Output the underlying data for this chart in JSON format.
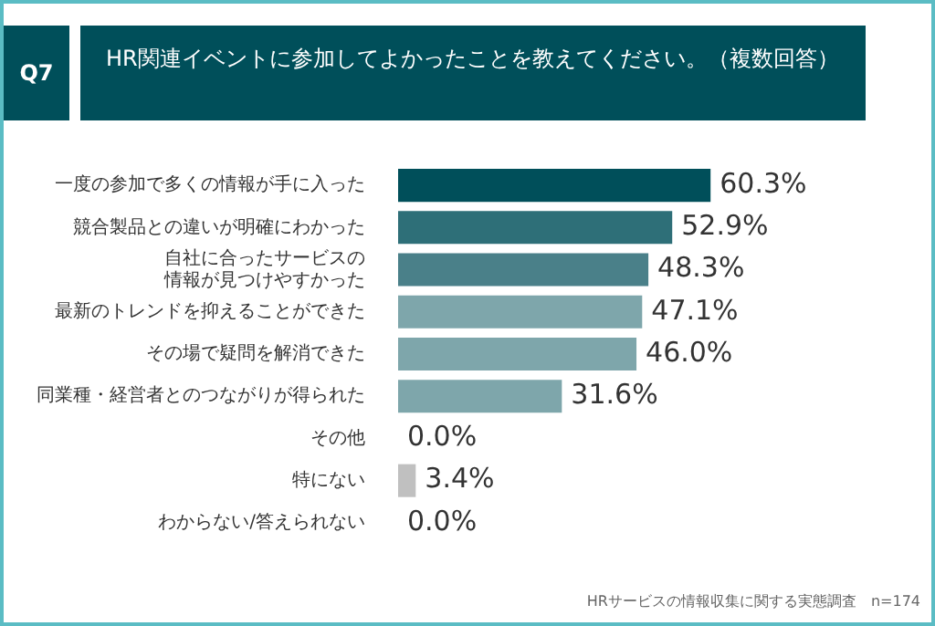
{
  "chart_data": {
    "type": "bar",
    "orientation": "horizontal",
    "title": "HR関連イベントに参加してよかったことを教えてください。（複数回答）",
    "categories": [
      "一度の参加で多くの情報が手に入った",
      "競合製品との違いが明確にわかった",
      "自社に合ったサービスの情報が見つけやすかった",
      "最新のトレンドを抑えることができた",
      "その場で疑問を解消できた",
      "同業種・経営者とのつながりが得られた",
      "その他",
      "特にない",
      "わからない/答えられない"
    ],
    "values": [
      60.3,
      52.9,
      48.3,
      47.1,
      46.0,
      31.6,
      0.0,
      3.4,
      0.0
    ],
    "colors": [
      "#004f5a",
      "#2e6f78",
      "#4a8089",
      "#7ea6ab",
      "#7ea6ab",
      "#7ea6ab",
      "#7ea6ab",
      "#c0c0c0",
      "#c0c0c0"
    ],
    "value_labels": [
      "60.3%",
      "52.9%",
      "48.3%",
      "47.1%",
      "46.0%",
      "31.6%",
      "0.0%",
      "3.4%",
      "0.0%"
    ],
    "tick_labels": "y",
    "legend": false,
    "grid": false,
    "annotations": [
      "Q7",
      "HRサービスの情報収集に関する実態調査　n=174"
    ]
  }
}
